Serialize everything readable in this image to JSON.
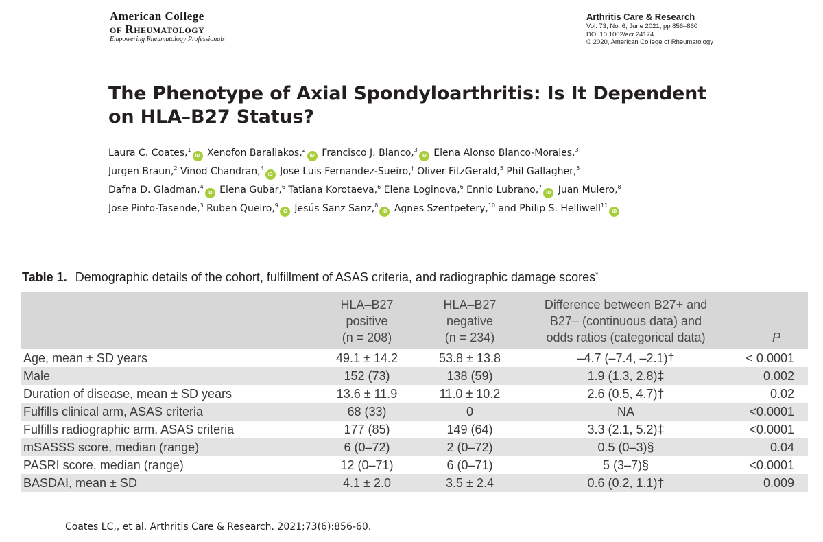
{
  "header": {
    "logo": {
      "line1": "American College",
      "line2": "of Rheumatology",
      "tagline": "Empowering Rheumatology Professionals"
    },
    "journal": {
      "name": "Arthritis Care & Research",
      "volume": "Vol. 73, No. 6, June 2021, pp 856–860",
      "doi": "DOI 10.1002/acr.24174",
      "copyright": "© 2020, American College of Rheumatology"
    }
  },
  "article": {
    "title_line1": "The Phenotype of Axial Spondyloarthritis: Is It Dependent",
    "title_line2": "on HLA–B27 Status?",
    "authors": [
      {
        "name": "Laura C. Coates,",
        "sup": "1",
        "orcid": true
      },
      {
        "name": "Xenofon Baraliakos,",
        "sup": "2",
        "orcid": true
      },
      {
        "name": "Francisco J. Blanco,",
        "sup": "3",
        "orcid": true
      },
      {
        "name": "Elena Alonso Blanco-Morales,",
        "sup": "3",
        "orcid": false
      },
      {
        "name": "Jurgen Braun,",
        "sup": "2",
        "orcid": false
      },
      {
        "name": "Vinod Chandran,",
        "sup": "4",
        "orcid": true
      },
      {
        "name": "Jose Luis Fernandez-Sueiro,",
        "sup": "†",
        "orcid": false
      },
      {
        "name": "Oliver FitzGerald,",
        "sup": "5",
        "orcid": false
      },
      {
        "name": "Phil Gallagher,",
        "sup": "5",
        "orcid": false
      },
      {
        "name": "Dafna D. Gladman,",
        "sup": "4",
        "orcid": true
      },
      {
        "name": "Elena Gubar,",
        "sup": "6",
        "orcid": false
      },
      {
        "name": "Tatiana Korotaeva,",
        "sup": "6",
        "orcid": false
      },
      {
        "name": "Elena Loginova,",
        "sup": "6",
        "orcid": false
      },
      {
        "name": "Ennio Lubrano,",
        "sup": "7",
        "orcid": true
      },
      {
        "name": "Juan Mulero,",
        "sup": "8",
        "orcid": false
      },
      {
        "name": "Jose Pinto-Tasende,",
        "sup": "3",
        "orcid": false
      },
      {
        "name": "Ruben Queiro,",
        "sup": "9",
        "orcid": true
      },
      {
        "name": "Jesús Sanz Sanz,",
        "sup": "8",
        "orcid": true
      },
      {
        "name": "Agnes Szentpetery,",
        "sup": "10",
        "orcid": false
      },
      {
        "name": "and Philip S. Helliwell",
        "sup": "11",
        "orcid": true
      }
    ],
    "orcid_label": "iD"
  },
  "table": {
    "label": "Table 1.",
    "caption": "Demographic details of the cohort, fulfillment of ASAS criteria, and radiographic damage scores",
    "caption_mark": "*",
    "headers": [
      [
        "",
        ""
      ],
      [
        "HLA–B27",
        "positive",
        "(n = 208)"
      ],
      [
        "HLA–B27",
        "negative",
        "(n = 234)"
      ],
      [
        "Difference between B27+ and",
        "B27– (continuous data) and",
        "odds ratios (categorical data)"
      ],
      [
        "P"
      ]
    ],
    "rows": [
      [
        "Age, mean ± SD years",
        "49.1 ± 14.2",
        "53.8 ± 13.8",
        "–4.7 (–7.4, –2.1)†",
        "< 0.0001"
      ],
      [
        "Male",
        "152 (73)",
        "138 (59)",
        "1.9 (1.3, 2.8)‡",
        "0.002"
      ],
      [
        "Duration of disease, mean ± SD years",
        "13.6 ± 11.9",
        "11.0 ± 10.2",
        "2.6 (0.5, 4.7)†",
        "0.02"
      ],
      [
        "Fulfills clinical arm, ASAS criteria",
        "68 (33)",
        "0",
        "NA",
        "<0.0001"
      ],
      [
        "Fulfills radiographic arm, ASAS criteria",
        "177 (85)",
        "149 (64)",
        "3.3 (2.1, 5.2)‡",
        "<0.0001"
      ],
      [
        "mSASSS score, median (range)",
        "6 (0–72)",
        "2 (0–72)",
        "0.5 (0–3)§",
        "0.04"
      ],
      [
        "PASRI score, median (range)",
        "12 (0–71)",
        "6 (0–71)",
        "5 (3–7)§",
        "<0.0001"
      ],
      [
        "BASDAI, mean ± SD",
        "4.1 ± 2.0",
        "3.5 ± 2.4",
        "0.6 (0.2, 1.1)†",
        "0.009"
      ]
    ]
  },
  "citation": "Coates LC,, et al. Arthritis Care & Research. 2021;73(6):856-60.",
  "colors": {
    "orcid": "#a6ce39",
    "header_band": "#d7d7d7",
    "row_shade": "#e3e3e3"
  }
}
